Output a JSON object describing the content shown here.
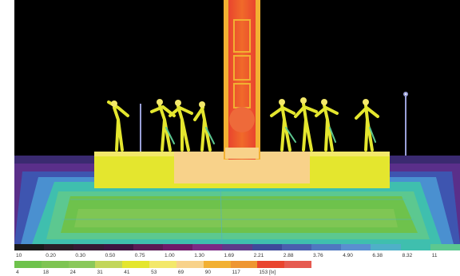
{
  "scale_top": {
    "colors": [
      "#1a1a1a",
      "#2a1e28",
      "#351a35",
      "#3d1442",
      "#5a1a55",
      "#6e1a6a",
      "#7b2a85",
      "#5d3b8a",
      "#3e4a9a",
      "#4a5fae",
      "#4f78c0",
      "#5a8fd0",
      "#4fb0c8",
      "#3fbfae",
      "#5cc890"
    ],
    "labels": [
      "10",
      "0.20",
      "0.30",
      "0.50",
      "0.75",
      "1.00",
      "1.30",
      "1.69",
      "2.21",
      "2.88",
      "3.76",
      "4.90",
      "6.38",
      "8.32",
      "11"
    ]
  },
  "scale_bottom": {
    "colors": [
      "#6ec24c",
      "#7ec452",
      "#8ac85a",
      "#c2d65a",
      "#e4e62e",
      "#f3e86a",
      "#f8d28a",
      "#f2b032",
      "#ee9632",
      "#e9442e",
      "#e65a50"
    ],
    "labels": [
      "4",
      "18",
      "24",
      "31",
      "41",
      "53",
      "69",
      "90",
      "117",
      "153 [lx]"
    ]
  },
  "render": {
    "type": "false-color illuminance rendering of a statue fountain at night",
    "background": "#000000"
  }
}
